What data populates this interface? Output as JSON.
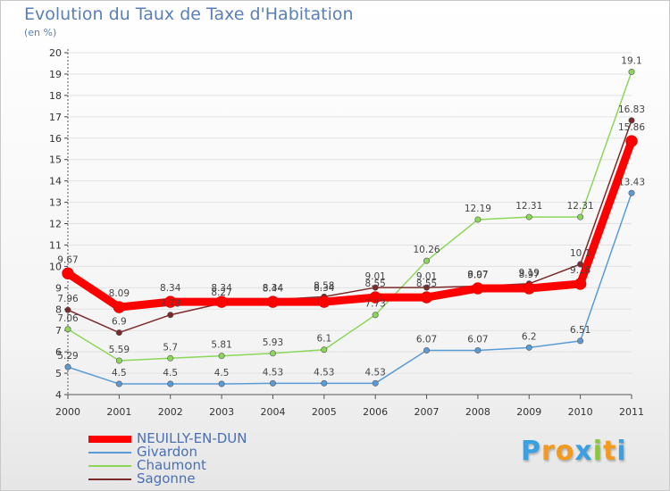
{
  "chart_data": {
    "type": "line",
    "title": "Evolution du Taux de Taxe d'Habitation",
    "subtitle": "(en %)",
    "categories": [
      "2000",
      "2001",
      "2002",
      "2003",
      "2004",
      "2005",
      "2006",
      "2007",
      "2008",
      "2009",
      "2010",
      "2011"
    ],
    "ylim": [
      4,
      20
    ],
    "yticks": [
      4,
      5,
      6,
      7,
      8,
      9,
      10,
      11,
      12,
      13,
      14,
      15,
      16,
      17,
      18,
      19,
      20
    ],
    "series": [
      {
        "name": "Givardon",
        "color": "#5b9bd5",
        "values": [
          5.29,
          4.5,
          4.5,
          4.5,
          4.53,
          4.53,
          4.53,
          6.07,
          6.07,
          6.2,
          6.51,
          13.43
        ],
        "labels": [
          "5.29",
          "4.5",
          "4.5",
          "4.5",
          "4.53",
          "4.53",
          "4.53",
          "6.07",
          "6.07",
          "6.2",
          "6.51",
          "13.43"
        ]
      },
      {
        "name": "Chaumont",
        "color": "#8cd65a",
        "values": [
          7.06,
          5.59,
          5.7,
          5.81,
          5.93,
          6.1,
          7.73,
          10.26,
          12.19,
          12.31,
          12.31,
          19.1
        ],
        "labels": [
          "7.06",
          "5.59",
          "5.7",
          "5.81",
          "5.93",
          "6.1",
          "7.73",
          "10.26",
          "12.19",
          "12.31",
          "12.31",
          "19.1"
        ]
      },
      {
        "name": "Sagonne",
        "color": "#7a2a2a",
        "values": [
          7.96,
          6.9,
          7.73,
          8.27,
          8.44,
          8.58,
          9.01,
          9.01,
          9.07,
          9.19,
          10.1,
          16.83
        ],
        "labels": [
          "7.96",
          "6.9",
          "7.73",
          "8.27",
          "8.44",
          "8.58",
          "9.01",
          "9.01",
          "9.07",
          "9.19",
          "10.1",
          "16.83"
        ]
      },
      {
        "name": "NEUILLY-EN-DUN",
        "color": "#ff0000",
        "values": [
          9.67,
          8.09,
          8.34,
          8.34,
          8.34,
          8.34,
          8.55,
          8.55,
          8.97,
          8.97,
          9.18,
          15.86
        ],
        "labels": [
          "9.67",
          "8.09",
          "8.34",
          "8.34",
          "8.34",
          "8.34",
          "8.55",
          "8.55",
          "8.97",
          "8.97",
          "9.18",
          "15.86"
        ]
      }
    ]
  },
  "legend": {
    "items": [
      {
        "label": "NEUILLY-EN-DUN",
        "color": "#ff0000"
      },
      {
        "label": "Givardon",
        "color": "#5b9bd5"
      },
      {
        "label": "Chaumont",
        "color": "#8cd65a"
      },
      {
        "label": "Sagonne",
        "color": "#7a2a2a"
      }
    ]
  },
  "logo": {
    "letters": [
      "P",
      "r",
      "o",
      "x",
      "i",
      "t",
      "i"
    ],
    "colors": [
      "#3aa0e0",
      "#f39a1e",
      "#f39a1e",
      "#3aa0e0",
      "#8cc63f",
      "#f39a1e",
      "#3aa0e0"
    ]
  }
}
